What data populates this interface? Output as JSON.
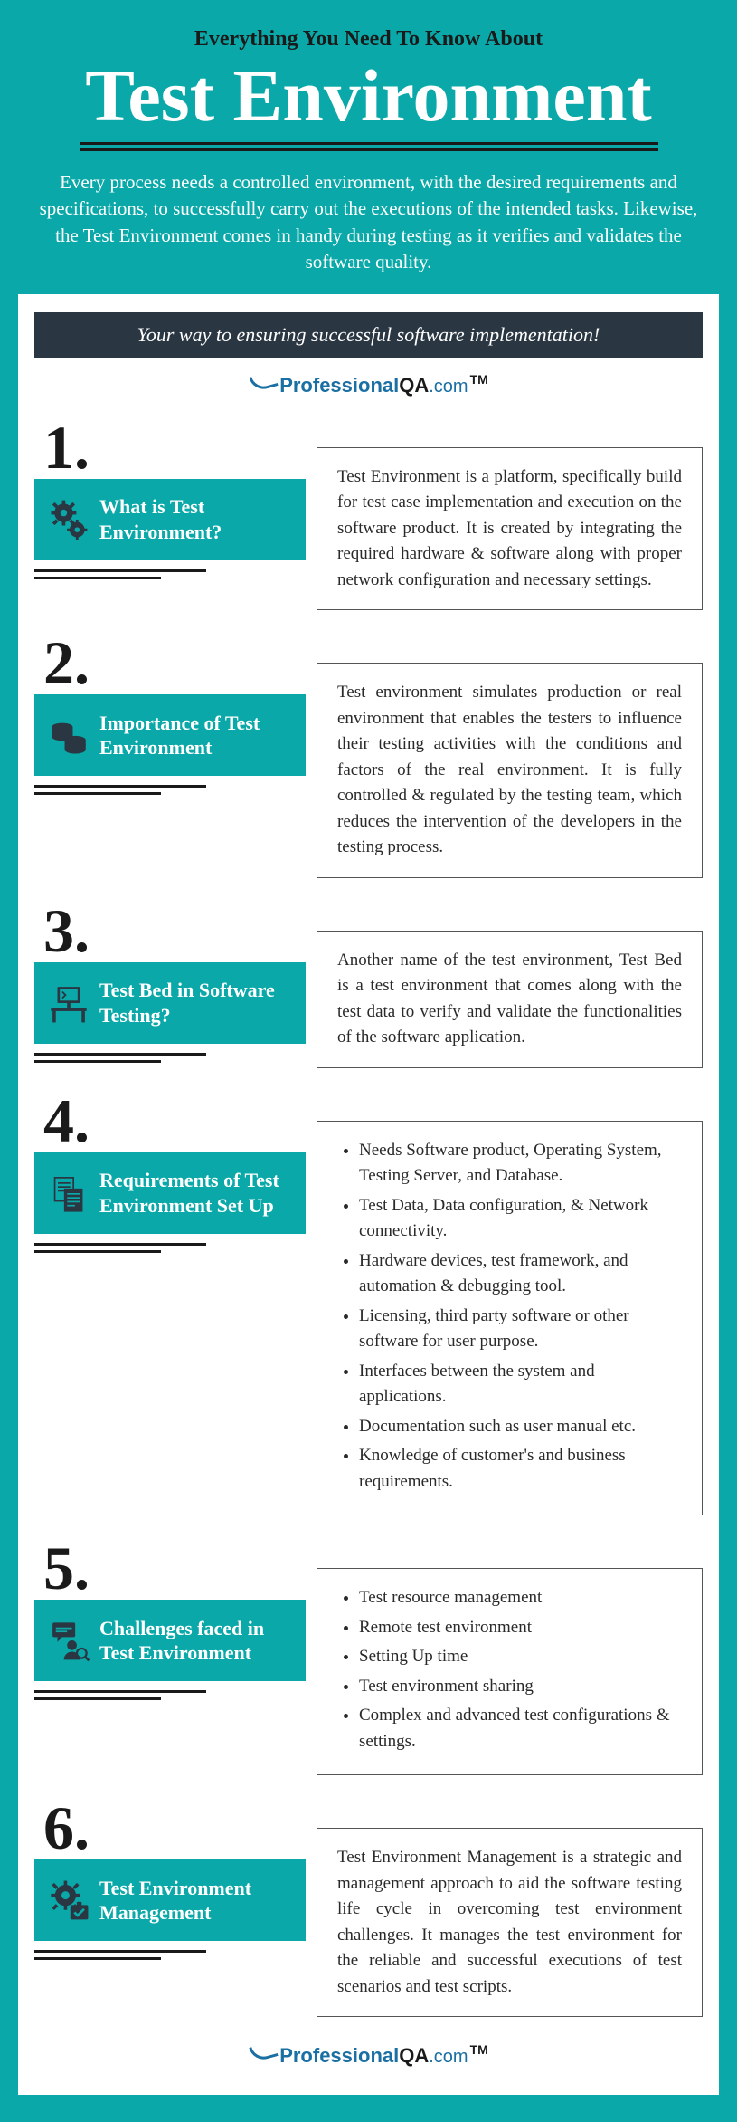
{
  "colors": {
    "background": "#0aa8a8",
    "panel": "#ffffff",
    "banner_bg": "#2a3642",
    "banner_text": "#ffffff",
    "title_text": "#ffffff",
    "dark_text": "#1a1a1a",
    "body_text": "#2a2a2a",
    "logo_blue": "#1a6fa3",
    "section_box_bg": "#0aa8a8",
    "box_border": "#555555"
  },
  "header": {
    "pretitle": "Everything You Need To Know About",
    "title": "Test Environment",
    "intro": "Every process needs a controlled environment, with the desired requirements and specifications, to successfully carry out the executions of the intended tasks. Likewise, the Test Environment comes in handy during testing as it verifies and validates the software quality.",
    "banner": "Your way to ensuring successful software implementation!"
  },
  "logo": {
    "professional": "Professional",
    "qa": "QA",
    "com": ".com",
    "tm": "TM"
  },
  "sections": [
    {
      "number": "1.",
      "title": "What is Test Environment?",
      "icon": "gears-icon",
      "type": "text",
      "content": "Test Environment is a platform, specifically build for test case implementation and execution on the software product. It is created by integrating the required hardware & software along with proper network configuration and necessary settings."
    },
    {
      "number": "2.",
      "title": "Importance of Test Environment",
      "icon": "coins-icon",
      "type": "text",
      "content": "Test environment simulates production or real environment that enables the testers to influence their testing activities with the conditions and factors of the real environment. It is fully controlled & regulated by the testing team, which reduces the intervention of the developers in the testing process."
    },
    {
      "number": "3.",
      "title": "Test Bed in Software Testing?",
      "icon": "computer-desk-icon",
      "type": "text",
      "content": "Another name of the test environment, Test Bed is a test environment that comes along with the test data to verify and validate the functionalities of the software application."
    },
    {
      "number": "4.",
      "title": "Requirements of Test Environment Set Up",
      "icon": "documents-icon",
      "type": "list",
      "items": [
        "Needs Software product, Operating System, Testing Server, and Database.",
        "Test Data, Data configuration, & Network connectivity.",
        "Hardware devices, test framework, and automation & debugging tool.",
        "Licensing, third party software or other software for user purpose.",
        "Interfaces between the system and applications.",
        "Documentation such as user manual etc.",
        "Knowledge of customer's and business requirements."
      ]
    },
    {
      "number": "5.",
      "title": "Challenges faced in Test Environment",
      "icon": "person-chat-icon",
      "type": "list",
      "items": [
        "Test resource management",
        "Remote test environment",
        "Setting Up time",
        "Test environment sharing",
        "Complex and advanced test configurations & settings."
      ]
    },
    {
      "number": "6.",
      "title": "Test Environment Management",
      "icon": "gear-check-icon",
      "type": "text",
      "content": "Test Environment Management is a strategic and management approach to aid the software testing life cycle in overcoming test environment challenges. It manages the test environment for the reliable and successful executions of test scenarios and test scripts."
    }
  ]
}
